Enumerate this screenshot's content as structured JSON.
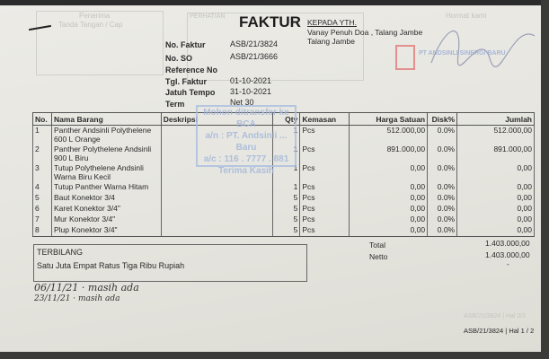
{
  "header": {
    "title": "FAKTUR",
    "recipient_label": "KEPADA YTH.",
    "recipient_line1": "Vanay Penuh Doa , Talang Jambe",
    "recipient_line2": "Talang Jambe",
    "receiver_label": "Penerima",
    "receiver_sub": "Tanda Tangan / Cap",
    "attention_label": "PERHATIAN",
    "regards_label": "Hormat kami",
    "company_logo_text": "PT ANDSINLI SINERGI BARU"
  },
  "info": [
    {
      "label": "No. Faktur",
      "value": "ASB/21/3824"
    },
    {
      "label": "No. SO",
      "value": "ASB/21/3666"
    },
    {
      "label": "Reference No",
      "value": ""
    },
    {
      "label": "Tgl. Faktur",
      "value": "01-10-2021"
    },
    {
      "label": "Jatuh Tempo",
      "value": "31-10-2021"
    },
    {
      "label": "Term",
      "value": "Net 30"
    }
  ],
  "table": {
    "columns": [
      "No.",
      "Nama Barang",
      "Deskripsi",
      "Qty",
      "Kemasan",
      "Harga Satuan",
      "Disk%",
      "Jumlah"
    ],
    "rows": [
      {
        "no": "1",
        "name": "Panther Andsinli Polythelene 600 L Orange",
        "desc": "",
        "qty": "1",
        "unit": "Pcs",
        "price": "512.000,00",
        "disc": "0.0%",
        "total": "512.000,00"
      },
      {
        "no": "2",
        "name": "Panther Polythelene Andsinli 900 L Biru",
        "desc": "",
        "qty": "1",
        "unit": "Pcs",
        "price": "891.000,00",
        "disc": "0.0%",
        "total": "891.000,00"
      },
      {
        "no": "3",
        "name": "Tutup Polythelene Andsinli Warna Biru Kecil",
        "desc": "",
        "qty": "1",
        "unit": "Pcs",
        "price": "0,00",
        "disc": "0.0%",
        "total": "0,00"
      },
      {
        "no": "4",
        "name": "Tutup Panther Warna Hitam",
        "desc": "",
        "qty": "1",
        "unit": "Pcs",
        "price": "0,00",
        "disc": "0.0%",
        "total": "0,00"
      },
      {
        "no": "5",
        "name": "Baut Konektor 3/4",
        "desc": "",
        "qty": "5",
        "unit": "Pcs",
        "price": "0,00",
        "disc": "0.0%",
        "total": "0,00"
      },
      {
        "no": "6",
        "name": "Karet Konektor 3/4\"",
        "desc": "",
        "qty": "5",
        "unit": "Pcs",
        "price": "0,00",
        "disc": "0.0%",
        "total": "0,00"
      },
      {
        "no": "7",
        "name": "Mur Konektor 3/4\"",
        "desc": "",
        "qty": "5",
        "unit": "Pcs",
        "price": "0,00",
        "disc": "0.0%",
        "total": "0,00"
      },
      {
        "no": "8",
        "name": "Plup Konektor 3/4\"",
        "desc": "",
        "qty": "5",
        "unit": "Pcs",
        "price": "0,00",
        "disc": "0.0%",
        "total": "0,00"
      }
    ]
  },
  "stamp": {
    "line1": "Mohon ditransfer ke BCA",
    "line2": "a/n : PT. Andsinli ... Baru",
    "line3": "a/c : 116 . 7777 . 881",
    "line4": "Terima Kasih"
  },
  "summary": {
    "total_label": "Total",
    "total_value": "1.403.000,00",
    "netto_label": "Netto",
    "netto_value": "1.403.000,00",
    "dash": "-"
  },
  "terbilang": {
    "label": "TERBILANG",
    "text": "Satu Juta Empat Ratus Tiga Ribu Rupiah"
  },
  "handwritten": {
    "line1": "06/11/21 · masih ada",
    "line2": "23/11/21 · masih ada"
  },
  "footer": {
    "page_ref": "ASB/21/3824 | Hal 1 / 2",
    "page_ref_faint": "ASB/21/3824 | Hal 2/2"
  },
  "colors": {
    "stamp_blue": "#9fb5da",
    "logo_red": "#e06a6a"
  }
}
